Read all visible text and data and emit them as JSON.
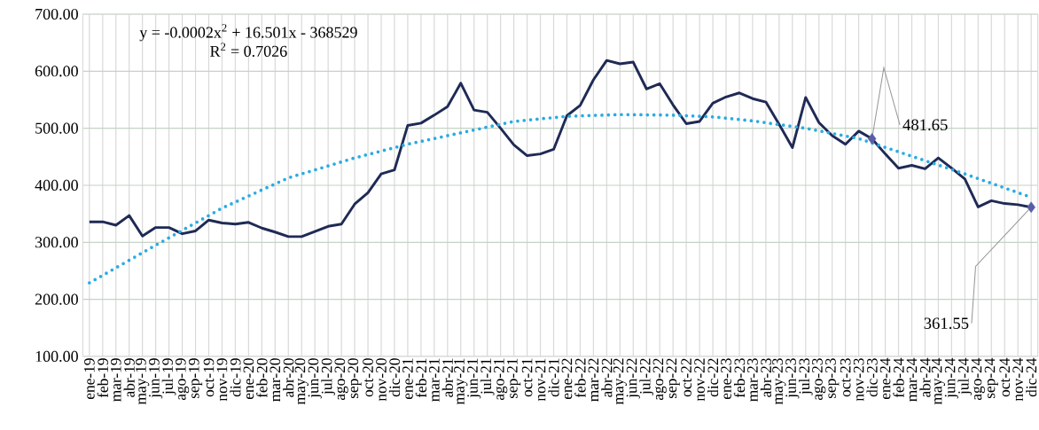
{
  "chart_data": {
    "type": "line",
    "categories": [
      "ene-19",
      "feb-19",
      "mar-19",
      "abr-19",
      "may-19",
      "jun-19",
      "jul-19",
      "ago-19",
      "sep-19",
      "oct-19",
      "nov-19",
      "dic-19",
      "ene-20",
      "feb-20",
      "mar-20",
      "abr-20",
      "may-20",
      "jun-20",
      "jul-20",
      "ago-20",
      "sep-20",
      "oct-20",
      "nov-20",
      "dic-20",
      "ene-21",
      "feb-21",
      "mar-21",
      "abr-21",
      "may-21",
      "jun-21",
      "jul-21",
      "ago-21",
      "sep-21",
      "oct-21",
      "nov-21",
      "dic-21",
      "ene-22",
      "feb-22",
      "mar-22",
      "abr-22",
      "may-22",
      "jun-22",
      "jul-22",
      "ago-22",
      "sep-22",
      "oct-22",
      "nov-22",
      "dic-22",
      "ene-23",
      "feb-23",
      "mar-23",
      "abr-23",
      "may-23",
      "jun-23",
      "jul-23",
      "ago-23",
      "sep-23",
      "oct-23",
      "nov-23",
      "dic-23",
      "ene-24",
      "feb-24",
      "mar-24",
      "abr-24",
      "may-24",
      "jun-24",
      "jul-24",
      "ago-24",
      "sep-24",
      "oct-24",
      "nov-24",
      "dic-24"
    ],
    "ylim": [
      100,
      700
    ],
    "yticks": [
      {
        "value": 100,
        "label": "100.00"
      },
      {
        "value": 200,
        "label": "200.00"
      },
      {
        "value": 300,
        "label": "300.00"
      },
      {
        "value": 400,
        "label": "400.00"
      },
      {
        "value": 500,
        "label": "500.00"
      },
      {
        "value": 600,
        "label": "600.00"
      },
      {
        "value": 700,
        "label": "700.00"
      }
    ],
    "grid": true,
    "annotations": [
      "y = -0.0002x$^{2}$ + 16.501x - 368529",
      "R$^{2}$ = 0.7026"
    ],
    "series": [
      {
        "color": "#1f2a55",
        "values": [
          336,
          336,
          330,
          347,
          311,
          326,
          326,
          315,
          320,
          339,
          334,
          332,
          335,
          325,
          318,
          310,
          310,
          319,
          328,
          332,
          367,
          387,
          420,
          427,
          505,
          509,
          523,
          538,
          579,
          532,
          528,
          500,
          471,
          452,
          455,
          463,
          522,
          540,
          585,
          619,
          613,
          616,
          569,
          578,
          541,
          508,
          512,
          544,
          555,
          562,
          552,
          546,
          507,
          466,
          554,
          510,
          487,
          472,
          495,
          481.65,
          455,
          430,
          435,
          429,
          448,
          430,
          411,
          362,
          373,
          368,
          366,
          361.55
        ],
        "value_labels": [
          null,
          null,
          null,
          null,
          null,
          null,
          null,
          null,
          null,
          null,
          null,
          null,
          null,
          null,
          null,
          null,
          null,
          null,
          null,
          null,
          null,
          null,
          null,
          null,
          null,
          null,
          null,
          null,
          null,
          null,
          null,
          null,
          null,
          null,
          null,
          null,
          null,
          null,
          null,
          null,
          null,
          null,
          null,
          null,
          null,
          null,
          null,
          null,
          null,
          null,
          null,
          null,
          null,
          null,
          null,
          null,
          null,
          null,
          null,
          "481.65",
          null,
          null,
          null,
          null,
          null,
          null,
          null,
          null,
          null,
          null,
          null,
          "361.55"
        ]
      },
      {
        "type": "line",
        "color": "#29abe2",
        "line_style": "dotted",
        "values": [
          229,
          null,
          null,
          null,
          null,
          295,
          null,
          null,
          null,
          null,
          360,
          null,
          null,
          null,
          null,
          413,
          null,
          null,
          null,
          null,
          448,
          null,
          null,
          null,
          472,
          null,
          null,
          null,
          492,
          null,
          null,
          null,
          512,
          null,
          null,
          null,
          521,
          null,
          null,
          null,
          524,
          null,
          null,
          null,
          523,
          null,
          null,
          520,
          null,
          null,
          513,
          null,
          null,
          null,
          500,
          null,
          null,
          null,
          482,
          null,
          null,
          null,
          451,
          null,
          null,
          null,
          420,
          null,
          null,
          null,
          null,
          379
        ]
      }
    ]
  }
}
